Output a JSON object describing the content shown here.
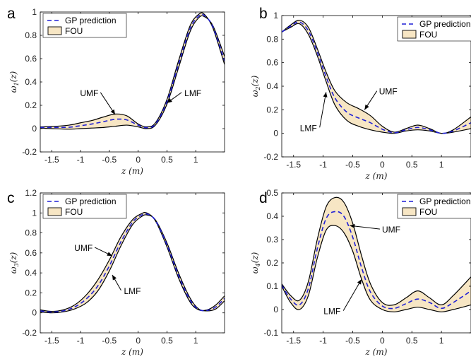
{
  "colors": {
    "fou_fill": "#f7e6c4",
    "gp_line": "#1f1fd6",
    "bound": "#000000"
  },
  "chart_data": [
    {
      "type": "area",
      "panel": "a",
      "ylabel": "ω1(z)",
      "xlabel": "z (m)",
      "xlim": [
        -1.7,
        1.5
      ],
      "ylim": [
        -0.2,
        1.0
      ],
      "xticks": [
        "-1.5",
        "-1",
        "-0.5",
        "0",
        "0.5",
        "1"
      ],
      "yticks": [
        "-0.2",
        "0",
        "0.2",
        "0.4",
        "0.6",
        "0.8",
        "1"
      ],
      "legend": {
        "position": "top-left",
        "entries": [
          "GP prediction",
          "FOU"
        ]
      },
      "annotations": [
        {
          "text": "UMF",
          "target": [
            -0.4,
            0.12
          ],
          "label_at": [
            -0.85,
            0.28
          ]
        },
        {
          "text": "LMF",
          "target": [
            0.5,
            0.22
          ],
          "label_at": [
            0.95,
            0.28
          ]
        }
      ],
      "series": [
        {
          "name": "UMF",
          "x": [
            -1.7,
            -1.5,
            -1.2,
            -1.0,
            -0.8,
            -0.6,
            -0.4,
            -0.2,
            0.0,
            0.15,
            0.3,
            0.5,
            0.7,
            0.9,
            1.05,
            1.15,
            1.3,
            1.5
          ],
          "y": [
            0.015,
            0.018,
            0.03,
            0.05,
            0.07,
            0.1,
            0.125,
            0.11,
            0.04,
            0.015,
            0.05,
            0.25,
            0.58,
            0.88,
            0.98,
            0.98,
            0.86,
            0.55
          ]
        },
        {
          "name": "LMF",
          "x": [
            -1.7,
            -1.5,
            -1.2,
            -1.0,
            -0.8,
            -0.6,
            -0.4,
            -0.2,
            0.0,
            0.15,
            0.3,
            0.5,
            0.7,
            0.9,
            1.05,
            1.15,
            1.3,
            1.5
          ],
          "y": [
            0.005,
            0.0,
            -0.005,
            0.0,
            0.005,
            0.01,
            0.02,
            0.03,
            0.015,
            0.0,
            0.03,
            0.21,
            0.52,
            0.83,
            0.95,
            0.96,
            0.88,
            0.62
          ]
        },
        {
          "name": "GP prediction",
          "x": [
            -1.7,
            -1.5,
            -1.2,
            -1.0,
            -0.8,
            -0.6,
            -0.4,
            -0.2,
            0.0,
            0.15,
            0.3,
            0.5,
            0.7,
            0.9,
            1.05,
            1.15,
            1.3,
            1.5
          ],
          "y": [
            0.01,
            0.01,
            0.012,
            0.025,
            0.04,
            0.06,
            0.08,
            0.075,
            0.03,
            0.008,
            0.04,
            0.23,
            0.55,
            0.855,
            0.965,
            0.97,
            0.87,
            0.58
          ]
        }
      ]
    },
    {
      "type": "area",
      "panel": "b",
      "ylabel": "ω2(z)",
      "xlabel": "z (m)",
      "xlim": [
        -1.7,
        1.5
      ],
      "ylim": [
        -0.2,
        1.0
      ],
      "xticks": [
        "-1.5",
        "-1",
        "-0.5",
        "0",
        "0.5",
        "1"
      ],
      "yticks": [
        "-0.2",
        "0",
        "0.2",
        "0.4",
        "0.6",
        "0.8",
        "1"
      ],
      "legend": {
        "position": "top-right",
        "entries": [
          "GP prediction",
          "FOU"
        ]
      },
      "annotations": [
        {
          "text": "UMF",
          "target": [
            -0.3,
            0.2
          ],
          "label_at": [
            0.1,
            0.33
          ]
        },
        {
          "text": "LMF",
          "target": [
            -0.95,
            0.35
          ],
          "label_at": [
            -1.25,
            0.02
          ]
        }
      ],
      "series": [
        {
          "name": "UMF",
          "x": [
            -1.7,
            -1.55,
            -1.4,
            -1.25,
            -1.1,
            -0.95,
            -0.8,
            -0.6,
            -0.4,
            -0.2,
            0.0,
            0.2,
            0.4,
            0.6,
            0.8,
            1.0,
            1.2,
            1.5
          ],
          "y": [
            0.86,
            0.92,
            0.96,
            0.9,
            0.72,
            0.52,
            0.36,
            0.26,
            0.21,
            0.15,
            0.06,
            0.01,
            0.04,
            0.07,
            0.04,
            0.0,
            0.03,
            0.14
          ]
        },
        {
          "name": "LMF",
          "x": [
            -1.7,
            -1.55,
            -1.4,
            -1.25,
            -1.1,
            -0.95,
            -0.8,
            -0.6,
            -0.4,
            -0.2,
            0.0,
            0.2,
            0.4,
            0.6,
            0.8,
            1.0,
            1.2,
            1.5
          ],
          "y": [
            0.86,
            0.9,
            0.93,
            0.84,
            0.66,
            0.44,
            0.24,
            0.11,
            0.06,
            0.03,
            0.01,
            0.0,
            0.02,
            0.03,
            0.02,
            0.0,
            0.01,
            0.04
          ]
        },
        {
          "name": "GP prediction",
          "x": [
            -1.7,
            -1.55,
            -1.4,
            -1.25,
            -1.1,
            -0.95,
            -0.8,
            -0.6,
            -0.4,
            -0.2,
            0.0,
            0.2,
            0.4,
            0.6,
            0.8,
            1.0,
            1.2,
            1.5
          ],
          "y": [
            0.86,
            0.91,
            0.945,
            0.87,
            0.69,
            0.48,
            0.3,
            0.18,
            0.13,
            0.09,
            0.035,
            0.005,
            0.03,
            0.05,
            0.03,
            0.0,
            0.02,
            0.09
          ]
        }
      ]
    },
    {
      "type": "area",
      "panel": "c",
      "ylabel": "ω3(z)",
      "xlabel": "z (m)",
      "xlim": [
        -1.7,
        1.5
      ],
      "ylim": [
        -0.2,
        1.2
      ],
      "xticks": [
        "-1.5",
        "-1",
        "-0.5",
        "0",
        "0.5",
        "1"
      ],
      "yticks": [
        "-0.2",
        "0",
        "0.2",
        "0.4",
        "0.6",
        "0.8",
        "1",
        "1.2"
      ],
      "legend": {
        "position": "top-left",
        "entries": [
          "GP prediction",
          "FOU"
        ]
      },
      "annotations": [
        {
          "text": "UMF",
          "target": [
            -0.45,
            0.57
          ],
          "label_at": [
            -0.95,
            0.62
          ]
        },
        {
          "text": "LMF",
          "target": [
            -0.45,
            0.38
          ],
          "label_at": [
            -0.1,
            0.19
          ]
        }
      ],
      "series": [
        {
          "name": "UMF",
          "x": [
            -1.7,
            -1.5,
            -1.3,
            -1.1,
            -0.9,
            -0.7,
            -0.5,
            -0.3,
            -0.1,
            0.05,
            0.15,
            0.3,
            0.5,
            0.7,
            0.9,
            1.05,
            1.2,
            1.35,
            1.5
          ],
          "y": [
            0.03,
            0.015,
            0.03,
            0.08,
            0.18,
            0.33,
            0.53,
            0.76,
            0.93,
            0.99,
            1.0,
            0.92,
            0.66,
            0.35,
            0.11,
            0.03,
            0.03,
            0.08,
            0.17
          ]
        },
        {
          "name": "LMF",
          "x": [
            -1.7,
            -1.5,
            -1.3,
            -1.1,
            -0.9,
            -0.7,
            -0.5,
            -0.3,
            -0.1,
            0.05,
            0.15,
            0.3,
            0.5,
            0.7,
            0.9,
            1.05,
            1.2,
            1.35,
            1.5
          ],
          "y": [
            0.01,
            0.0,
            0.01,
            0.04,
            0.1,
            0.22,
            0.42,
            0.67,
            0.88,
            0.96,
            0.98,
            0.93,
            0.7,
            0.4,
            0.15,
            0.04,
            0.02,
            0.04,
            0.12
          ]
        },
        {
          "name": "GP prediction",
          "x": [
            -1.7,
            -1.5,
            -1.3,
            -1.1,
            -0.9,
            -0.7,
            -0.5,
            -0.3,
            -0.1,
            0.05,
            0.15,
            0.3,
            0.5,
            0.7,
            0.9,
            1.05,
            1.2,
            1.35,
            1.5
          ],
          "y": [
            0.02,
            0.008,
            0.02,
            0.06,
            0.14,
            0.27,
            0.47,
            0.71,
            0.905,
            0.975,
            0.99,
            0.925,
            0.68,
            0.375,
            0.13,
            0.035,
            0.025,
            0.06,
            0.145
          ]
        }
      ]
    },
    {
      "type": "area",
      "panel": "d",
      "ylabel": "ω4(z)",
      "xlabel": "z (m)",
      "xlim": [
        -1.7,
        1.5
      ],
      "ylim": [
        -0.1,
        0.5
      ],
      "xticks": [
        "-1.5",
        "-1",
        "-0.5",
        "0",
        "0.5",
        "1"
      ],
      "yticks": [
        "-0.1",
        "0",
        "0.1",
        "0.2",
        "0.3",
        "0.4",
        "0.5"
      ],
      "legend": {
        "position": "top-right",
        "entries": [
          "GP prediction",
          "FOU"
        ]
      },
      "annotations": [
        {
          "text": "UMF",
          "target": [
            -0.55,
            0.36
          ],
          "label_at": [
            0.15,
            0.33
          ]
        },
        {
          "text": "LMF",
          "target": [
            -0.35,
            0.13
          ],
          "label_at": [
            -0.85,
            -0.02
          ]
        }
      ],
      "series": [
        {
          "name": "UMF",
          "x": [
            -1.7,
            -1.55,
            -1.4,
            -1.25,
            -1.1,
            -0.95,
            -0.8,
            -0.65,
            -0.5,
            -0.35,
            -0.2,
            0.0,
            0.2,
            0.4,
            0.6,
            0.8,
            1.0,
            1.2,
            1.5
          ],
          "y": [
            0.11,
            0.06,
            0.04,
            0.12,
            0.3,
            0.44,
            0.48,
            0.46,
            0.37,
            0.23,
            0.11,
            0.03,
            0.02,
            0.05,
            0.08,
            0.05,
            0.02,
            0.06,
            0.14
          ]
        },
        {
          "name": "LMF",
          "x": [
            -1.7,
            -1.55,
            -1.4,
            -1.25,
            -1.1,
            -0.95,
            -0.8,
            -0.65,
            -0.5,
            -0.35,
            -0.2,
            0.0,
            0.2,
            0.4,
            0.6,
            0.8,
            1.0,
            1.2,
            1.5
          ],
          "y": [
            0.1,
            0.03,
            0.0,
            0.06,
            0.22,
            0.34,
            0.36,
            0.33,
            0.25,
            0.13,
            0.04,
            0.0,
            -0.01,
            0.0,
            0.01,
            0.0,
            -0.01,
            0.0,
            0.02
          ]
        },
        {
          "name": "GP prediction",
          "x": [
            -1.7,
            -1.55,
            -1.4,
            -1.25,
            -1.1,
            -0.95,
            -0.8,
            -0.65,
            -0.5,
            -0.35,
            -0.2,
            0.0,
            0.2,
            0.4,
            0.6,
            0.8,
            1.0,
            1.2,
            1.5
          ],
          "y": [
            0.105,
            0.045,
            0.02,
            0.09,
            0.26,
            0.39,
            0.42,
            0.4,
            0.31,
            0.18,
            0.075,
            0.015,
            0.005,
            0.025,
            0.045,
            0.03,
            0.005,
            0.03,
            0.08
          ]
        }
      ]
    }
  ]
}
